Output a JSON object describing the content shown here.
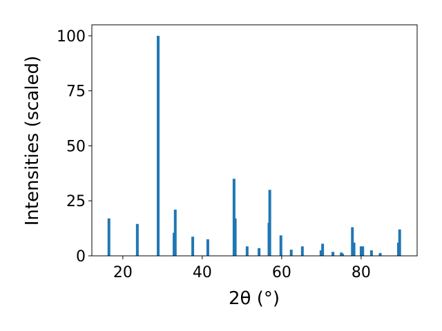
{
  "chart_data": {
    "type": "bar",
    "x_label": "2θ (°)",
    "y_label": "Intensities (scaled)",
    "x": [
      16.5,
      23.65,
      28.9,
      32.9,
      33.2,
      37.6,
      41.4,
      48.0,
      48.3,
      51.3,
      54.3,
      56.8,
      57.0,
      59.8,
      62.4,
      65.2,
      69.9,
      70.3,
      72.9,
      75.0,
      75.3,
      77.8,
      78.2,
      80.0,
      80.4,
      82.6,
      84.8,
      89.4,
      89.7
    ],
    "values": [
      17,
      14.5,
      100,
      10.5,
      21,
      8.7,
      7.5,
      35,
      17,
      4.3,
      3.5,
      15,
      30,
      9.3,
      2.8,
      4.3,
      2.5,
      5.5,
      1.8,
      1.5,
      1.0,
      13,
      6,
      4.3,
      4.3,
      2.5,
      1.3,
      6,
      12
    ],
    "color": "#1f77b4",
    "xlim": [
      12.2,
      94.1
    ],
    "ylim": [
      0,
      105
    ],
    "xticks": [
      20,
      40,
      60,
      80
    ],
    "yticks": [
      0,
      25,
      50,
      75,
      100
    ]
  }
}
